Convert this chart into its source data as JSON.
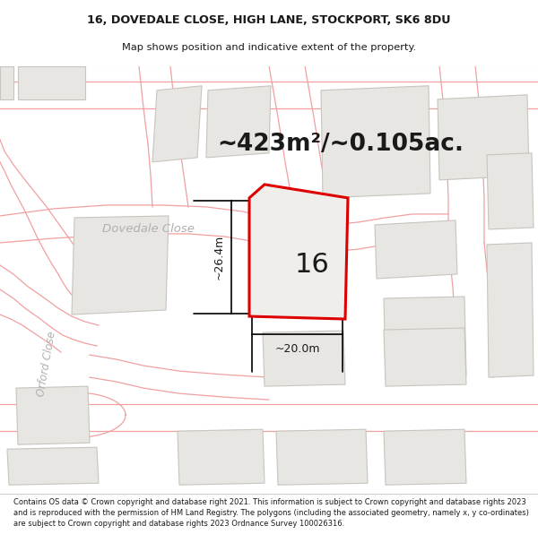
{
  "title_line1": "16, DOVEDALE CLOSE, HIGH LANE, STOCKPORT, SK6 8DU",
  "title_line2": "Map shows position and indicative extent of the property.",
  "area_text": "~423m²/~0.105ac.",
  "street_name": "Dovedale Close",
  "street_name2": "Orford Close",
  "number_label": "16",
  "dim_height": "~26.4m",
  "dim_width": "~20.0m",
  "footer_text": "Contains OS data © Crown copyright and database right 2021. This information is subject to Crown copyright and database rights 2023 and is reproduced with the permission of HM Land Registry. The polygons (including the associated geometry, namely x, y co-ordinates) are subject to Crown copyright and database rights 2023 Ordnance Survey 100026316.",
  "map_bg": "#ffffff",
  "building_fill": "#e8e6e2",
  "building_edge": "#c8c4be",
  "property_line_color": "#dd0000",
  "property_fill": "#f0eeea",
  "road_line_color": "#f0a0a0",
  "road_fill": "#ffffff",
  "text_dark": "#1a1a1a",
  "text_gray": "#aaaaaa",
  "header_bg": "#ffffff",
  "footer_bg": "#ffffff",
  "dim_color": "#000000",
  "header_border": "#cccccc"
}
